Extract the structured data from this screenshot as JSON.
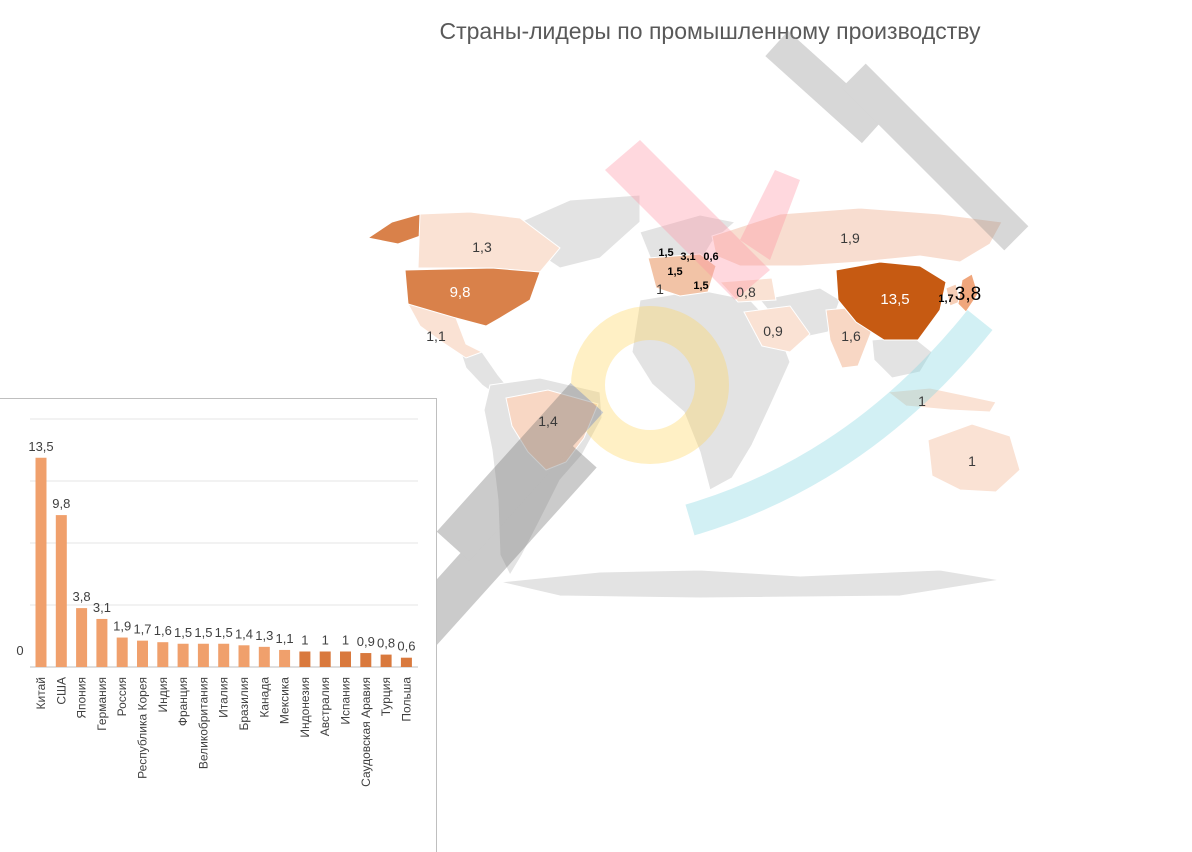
{
  "chart_data": [
    {
      "type": "map",
      "title": "Страны-лидеры по промышленному производству",
      "regions": [
        {
          "name": "Китай",
          "value": "13,5",
          "color": "#c65a12"
        },
        {
          "name": "США",
          "value": "9,8",
          "color": "#d9814a"
        },
        {
          "name": "Япония",
          "value": "3,8",
          "color": "#f0a67c"
        },
        {
          "name": "Германия",
          "value": "3,1",
          "color": "#f2c3a6"
        },
        {
          "name": "Россия",
          "value": "1,9",
          "color": "#f8ddd0"
        },
        {
          "name": "Республика Корея",
          "value": "1,7",
          "color": "#f6cfb8"
        },
        {
          "name": "Индия",
          "value": "1,6",
          "color": "#f8d7c4"
        },
        {
          "name": "Франция",
          "value": "1,5",
          "color": "#f8d7c4"
        },
        {
          "name": "Великобритания",
          "value": "1,5",
          "color": "#f8d7c4"
        },
        {
          "name": "Италия",
          "value": "1,5",
          "color": "#f8d7c4"
        },
        {
          "name": "Бразилия",
          "value": "1,4",
          "color": "#f8d7c4"
        },
        {
          "name": "Канада",
          "value": "1,3",
          "color": "#fae2d4"
        },
        {
          "name": "Мексика",
          "value": "1,1",
          "color": "#fae2d4"
        },
        {
          "name": "Индонезия",
          "value": "1",
          "color": "#fae2d4"
        },
        {
          "name": "Австралия",
          "value": "1",
          "color": "#fae2d4"
        },
        {
          "name": "Испания",
          "value": "1",
          "color": "#fae2d4"
        },
        {
          "name": "Саудовская Аравия",
          "value": "0,9",
          "color": "#fae2d4"
        },
        {
          "name": "Турция",
          "value": "0,8",
          "color": "#fae2d4"
        },
        {
          "name": "Польша",
          "value": "0,6",
          "color": "#fae2d4"
        }
      ]
    },
    {
      "type": "bar",
      "categories": [
        "Китай",
        "США",
        "Япония",
        "Германия",
        "Россия",
        "Республика Корея",
        "Индия",
        "Франция",
        "Великобритания",
        "Италия",
        "Бразилия",
        "Канада",
        "Мексика",
        "Индонезия",
        "Австралия",
        "Испания",
        "Саудовская Аравия",
        "Турция",
        "Польша"
      ],
      "values": [
        13.5,
        9.8,
        3.8,
        3.1,
        1.9,
        1.7,
        1.6,
        1.5,
        1.5,
        1.5,
        1.4,
        1.3,
        1.1,
        1,
        1,
        1,
        0.9,
        0.8,
        0.6
      ],
      "value_labels": [
        "13,5",
        "9,8",
        "3,8",
        "3,1",
        "1,9",
        "1,7",
        "1,6",
        "1,5",
        "1,5",
        "1,5",
        "1,4",
        "1,3",
        "1,1",
        "1",
        "1",
        "1",
        "0,9",
        "0,8",
        "0,6"
      ],
      "y_tick_label": "0",
      "ylim": [
        0,
        16
      ],
      "grid": true,
      "bar_color": "#f0a06c",
      "bar_color_dark": "#d9793d"
    }
  ]
}
